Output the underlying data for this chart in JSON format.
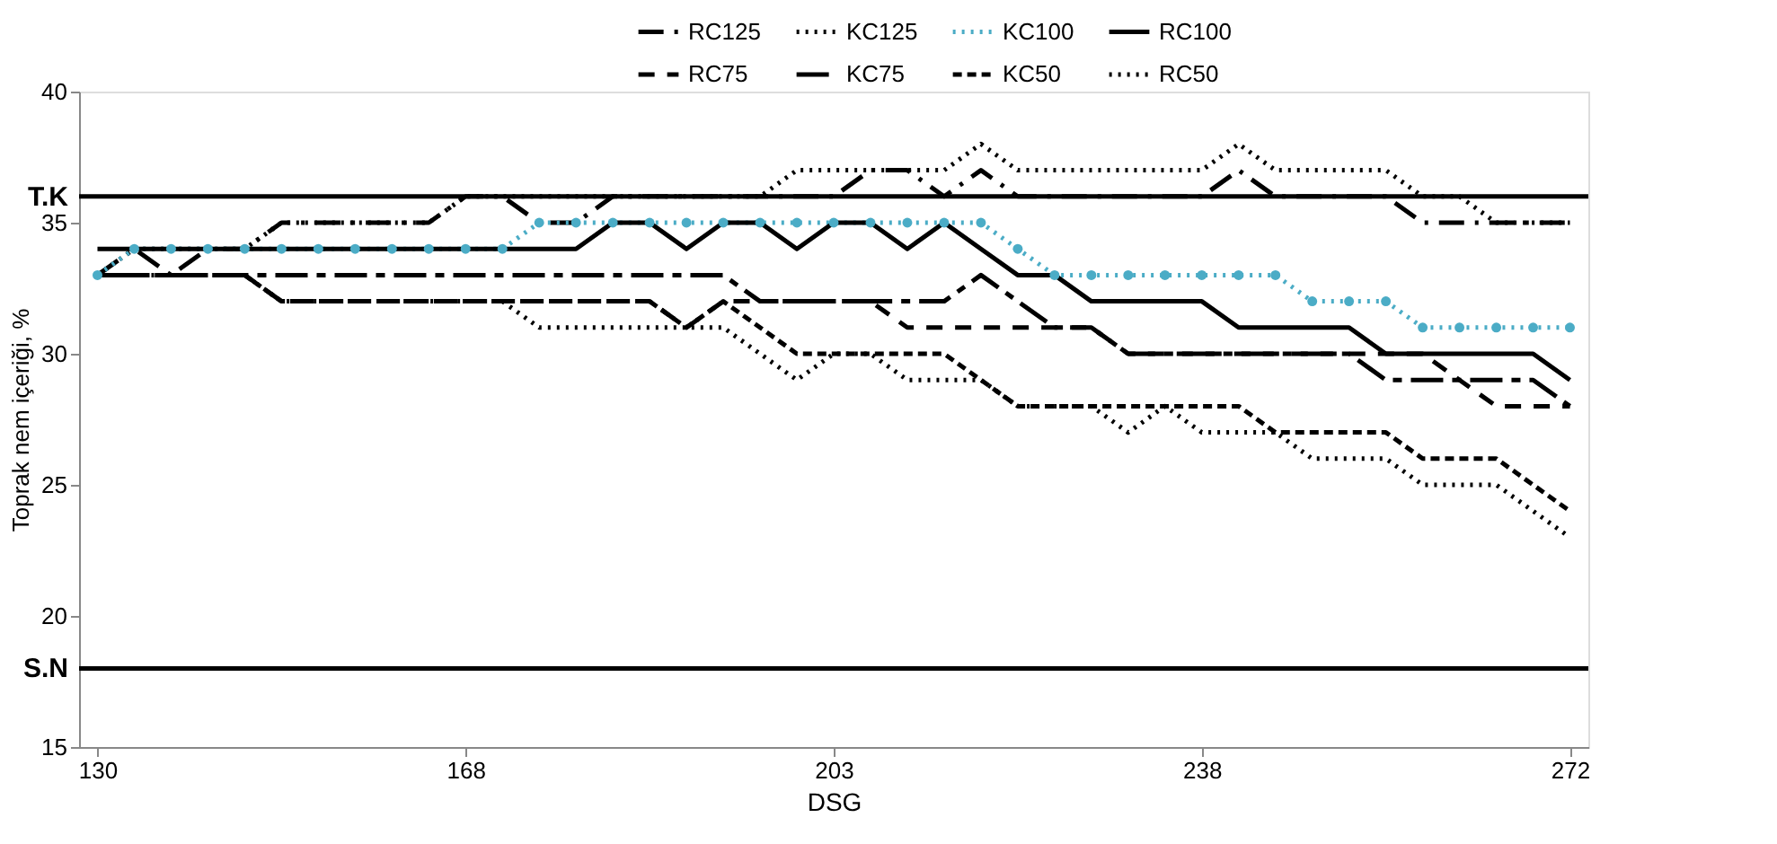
{
  "chart_data": {
    "type": "line",
    "xlabel": "DSG",
    "ylabel": "Toprak nem içeriği, %",
    "categories": [
      "130",
      null,
      null,
      null,
      null,
      null,
      null,
      null,
      null,
      null,
      "168",
      null,
      null,
      null,
      null,
      null,
      null,
      null,
      null,
      null,
      "203",
      null,
      null,
      null,
      null,
      null,
      null,
      null,
      null,
      null,
      "238",
      null,
      null,
      null,
      null,
      null,
      null,
      null,
      null,
      null,
      "272"
    ],
    "ylim": [
      15,
      40
    ],
    "yticks": [
      15,
      20,
      25,
      30,
      35,
      40
    ],
    "grid": false,
    "legend": "top right",
    "marker": "none",
    "series": [
      {
        "name": "RC125",
        "color": "#000000",
        "line_style": "dashed",
        "values": [
          33,
          34,
          33,
          34,
          34,
          35,
          35,
          35,
          35,
          35,
          36,
          36,
          35,
          35,
          36,
          36,
          36,
          36,
          36,
          36,
          36,
          37,
          37,
          36,
          37,
          36,
          36,
          36,
          36,
          36,
          36,
          37,
          36,
          36,
          36,
          36,
          35,
          35,
          35,
          35,
          35
        ]
      },
      {
        "name": "KC125",
        "color": "#000000",
        "line_style": "dotted",
        "values": [
          33,
          34,
          34,
          34,
          34,
          35,
          35,
          35,
          35,
          35,
          36,
          36,
          36,
          36,
          36,
          36,
          36,
          36,
          36,
          37,
          37,
          37,
          37,
          37,
          38,
          37,
          37,
          37,
          37,
          37,
          37,
          38,
          37,
          37,
          37,
          37,
          36,
          36,
          35,
          35,
          35
        ]
      },
      {
        "name": "KC100",
        "color": "#4bacc6",
        "line_style": "dotted",
        "marker": "circle",
        "values": [
          33,
          34,
          34,
          34,
          34,
          34,
          34,
          34,
          34,
          34,
          34,
          34,
          35,
          35,
          35,
          35,
          35,
          35,
          35,
          35,
          35,
          35,
          35,
          35,
          35,
          34,
          33,
          33,
          33,
          33,
          33,
          33,
          33,
          32,
          32,
          32,
          31,
          31,
          31,
          31,
          31
        ]
      },
      {
        "name": "RC100",
        "color": "#000000",
        "line_style": "solid",
        "values": [
          34,
          34,
          34,
          34,
          34,
          34,
          34,
          34,
          34,
          34,
          34,
          34,
          34,
          34,
          35,
          35,
          34,
          35,
          35,
          34,
          35,
          35,
          34,
          35,
          34,
          33,
          33,
          32,
          32,
          32,
          32,
          31,
          31,
          31,
          31,
          30,
          30,
          30,
          30,
          30,
          29
        ]
      },
      {
        "name": "RC75",
        "color": "#000000",
        "line_style": "dashed",
        "values": [
          33,
          33,
          33,
          33,
          33,
          32,
          32,
          32,
          32,
          32,
          32,
          32,
          32,
          32,
          32,
          32,
          31,
          32,
          32,
          32,
          32,
          32,
          31,
          31,
          31,
          31,
          31,
          31,
          30,
          30,
          30,
          30,
          30,
          30,
          30,
          30,
          30,
          29,
          28,
          28,
          28
        ]
      },
      {
        "name": "KC75",
        "color": "#000000",
        "line_style": "dashed",
        "values": [
          33,
          33,
          33,
          33,
          33,
          33,
          33,
          33,
          33,
          33,
          33,
          33,
          33,
          33,
          33,
          33,
          33,
          33,
          32,
          32,
          32,
          32,
          32,
          32,
          33,
          32,
          31,
          31,
          30,
          30,
          30,
          30,
          30,
          30,
          30,
          29,
          29,
          29,
          29,
          29,
          28
        ]
      },
      {
        "name": "KC50",
        "color": "#000000",
        "line_style": "dashed",
        "values": [
          33,
          33,
          33,
          33,
          33,
          32,
          32,
          32,
          32,
          32,
          32,
          32,
          32,
          32,
          32,
          32,
          31,
          32,
          31,
          30,
          30,
          30,
          30,
          30,
          29,
          28,
          28,
          28,
          28,
          28,
          28,
          28,
          27,
          27,
          27,
          27,
          26,
          26,
          26,
          25,
          24
        ]
      },
      {
        "name": "RC50",
        "color": "#000000",
        "line_style": "dotted",
        "values": [
          33,
          33,
          33,
          33,
          33,
          32,
          32,
          32,
          32,
          32,
          32,
          32,
          31,
          31,
          31,
          31,
          31,
          31,
          30,
          29,
          30,
          30,
          29,
          29,
          29,
          28,
          28,
          28,
          27,
          28,
          27,
          27,
          27,
          26,
          26,
          26,
          25,
          25,
          25,
          24,
          23
        ]
      }
    ],
    "ref_lines": [
      {
        "axis": "y",
        "value": 36,
        "label": "T.K",
        "color": "#000000",
        "line_style": "solid"
      },
      {
        "axis": "y",
        "value": 18,
        "label": "S.N",
        "color": "#000000",
        "line_style": "solid"
      }
    ]
  }
}
